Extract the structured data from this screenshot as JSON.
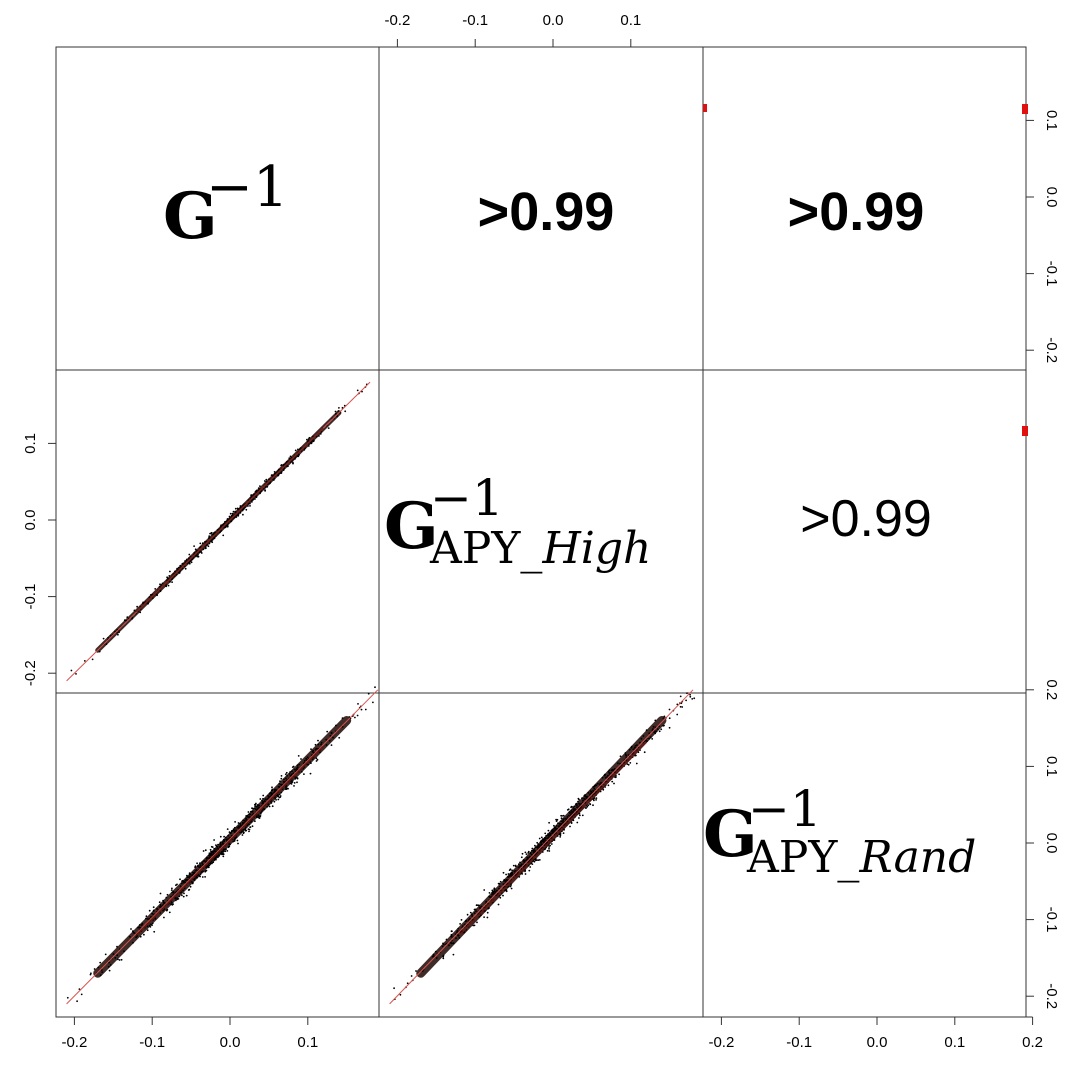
{
  "chart_data": {
    "type": "scatter",
    "kind": "pairs-matrix",
    "variables": [
      {
        "base": "G",
        "sup": "−1",
        "sub_upright": "",
        "sub_italic": ""
      },
      {
        "base": "G",
        "sup": "−1",
        "sub_upright": "APY_",
        "sub_italic": "High"
      },
      {
        "base": "G",
        "sup": "−1",
        "sub_upright": "APY_",
        "sub_italic": "Rand"
      }
    ],
    "correlations": [
      {
        "row": 0,
        "col": 1,
        "label": ">0.99",
        "bold": true
      },
      {
        "row": 0,
        "col": 2,
        "label": ">0.99",
        "bold": true
      },
      {
        "row": 1,
        "col": 2,
        "label": ">0.99",
        "bold": false
      }
    ],
    "axis_range": [
      -0.22,
      0.2
    ],
    "ticks": {
      "top": [
        "-0.2",
        "-0.1",
        "0.0",
        "0.1"
      ],
      "bottom_left": [
        "-0.2",
        "-0.1",
        "0.0",
        "0.1"
      ],
      "bottom_right": [
        "-0.2",
        "-0.1",
        "0.0",
        "0.1",
        "0.2"
      ],
      "right_top": [
        "0.1",
        "0.0",
        "-0.1",
        "-0.2"
      ],
      "left_middle": [
        "0.1",
        "0.0",
        "-0.1",
        "-0.2"
      ],
      "right_bottom": [
        "0.2",
        "0.1",
        "0.0",
        "-0.1",
        "-0.2"
      ]
    },
    "scatter_panels": [
      {
        "row": 1,
        "col": 0,
        "x": [
          -0.21,
          0.18
        ],
        "y": [
          -0.21,
          0.18
        ],
        "spread": 0.003
      },
      {
        "row": 2,
        "col": 0,
        "x": [
          -0.21,
          0.19
        ],
        "y": [
          -0.21,
          0.2
        ],
        "spread": 0.006
      },
      {
        "row": 2,
        "col": 1,
        "x": [
          -0.21,
          0.18
        ],
        "y": [
          -0.21,
          0.2
        ],
        "spread": 0.006
      }
    ],
    "fit_line_color": "#d9534f",
    "point_color": "#000000",
    "marker_color": "#e01010",
    "grid": false,
    "legend": "none"
  }
}
